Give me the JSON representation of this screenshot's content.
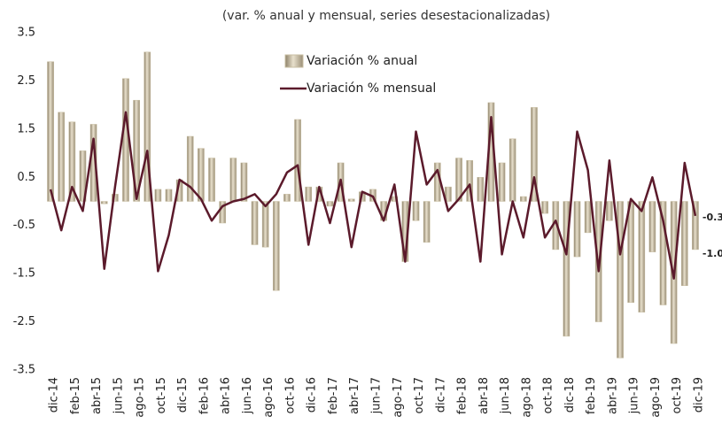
{
  "chart_data": {
    "type": "bar",
    "title": "(var. % anual y mensual, series desestacionalizadas)",
    "categories": [
      "dic-14",
      null,
      "feb-15",
      null,
      "abr-15",
      null,
      "jun-15",
      null,
      "ago-15",
      null,
      "oct-15",
      null,
      "dic-15",
      null,
      "feb-16",
      null,
      "abr-16",
      null,
      "jun-16",
      null,
      "ago-16",
      null,
      "oct-16",
      null,
      "dic-16",
      null,
      "feb-17",
      null,
      "abr-17",
      null,
      "jun-17",
      null,
      "ago-17",
      null,
      "oct-17",
      null,
      "dic-17",
      null,
      "feb-18",
      null,
      "abr-18",
      null,
      "jun-18",
      null,
      "ago-18",
      null,
      "oct-18",
      null,
      "dic-18",
      null,
      "feb-19",
      null,
      "abr-19",
      null,
      "jun-19",
      null,
      "ago-19",
      null,
      "oct-19",
      null,
      "dic-19"
    ],
    "series": [
      {
        "name": "Variación % anual",
        "type": "bar",
        "color": "#c9bfa3",
        "values": [
          2.9,
          1.85,
          1.65,
          1.05,
          1.6,
          -0.05,
          0.15,
          2.55,
          2.1,
          3.1,
          0.25,
          0.25,
          0.45,
          1.35,
          1.1,
          0.9,
          -0.45,
          0.9,
          0.8,
          -0.9,
          -0.95,
          -1.85,
          0.15,
          1.7,
          0.3,
          0.3,
          -0.1,
          0.8,
          0.05,
          0.2,
          0.25,
          -0.4,
          0.1,
          -1.25,
          -0.4,
          -0.85,
          0.8,
          0.3,
          0.9,
          0.85,
          0.5,
          2.05,
          0.8,
          1.3,
          0.1,
          1.95,
          -0.25,
          -1.0,
          -2.8,
          -1.15,
          -0.65,
          -2.5,
          -0.4,
          -3.25,
          -2.1,
          -2.3,
          -1.05,
          -2.15,
          -2.95,
          -1.75,
          -1.0
        ],
        "value_labels": [
          null,
          null,
          null,
          null,
          null,
          null,
          null,
          null,
          null,
          null,
          null,
          null,
          null,
          null,
          null,
          null,
          null,
          null,
          null,
          null,
          null,
          null,
          null,
          null,
          null,
          null,
          null,
          null,
          null,
          null,
          null,
          null,
          null,
          null,
          null,
          null,
          null,
          null,
          null,
          null,
          null,
          null,
          null,
          null,
          null,
          null,
          null,
          null,
          null,
          null,
          null,
          null,
          null,
          null,
          null,
          null,
          null,
          null,
          null,
          null,
          "-1.0"
        ]
      },
      {
        "name": "Variación % mensual",
        "type": "line",
        "color": "#5b1a2b",
        "values": [
          0.25,
          -0.6,
          0.3,
          -0.2,
          1.3,
          -1.4,
          0.3,
          1.85,
          0.05,
          1.05,
          -1.45,
          -0.7,
          0.45,
          0.3,
          0.05,
          -0.4,
          -0.1,
          0.0,
          0.05,
          0.15,
          -0.1,
          0.15,
          0.6,
          0.75,
          -0.9,
          0.3,
          -0.45,
          0.45,
          -0.95,
          0.2,
          0.1,
          -0.4,
          0.35,
          -1.25,
          1.45,
          0.35,
          0.65,
          -0.2,
          0.05,
          0.35,
          -1.25,
          1.75,
          -1.1,
          0.0,
          -0.75,
          0.5,
          -0.75,
          -0.4,
          -1.1,
          1.45,
          0.65,
          -1.45,
          0.85,
          -1.1,
          0.05,
          -0.2,
          0.5,
          -0.4,
          -1.6,
          0.8,
          -0.3
        ],
        "value_labels": [
          null,
          null,
          null,
          null,
          null,
          null,
          null,
          null,
          null,
          null,
          null,
          null,
          null,
          null,
          null,
          null,
          null,
          null,
          null,
          null,
          null,
          null,
          null,
          null,
          null,
          null,
          null,
          null,
          null,
          null,
          null,
          null,
          null,
          null,
          null,
          null,
          null,
          null,
          null,
          null,
          null,
          null,
          null,
          null,
          null,
          null,
          null,
          null,
          null,
          null,
          null,
          null,
          null,
          null,
          null,
          null,
          null,
          null,
          null,
          null,
          "-0.3"
        ]
      }
    ],
    "ylim": [
      -3.5,
      3.5
    ],
    "yticks": [
      -3.5,
      -2.5,
      -1.5,
      -0.5,
      0.5,
      1.5,
      2.5,
      3.5
    ],
    "grid": false,
    "legend": "top"
  }
}
